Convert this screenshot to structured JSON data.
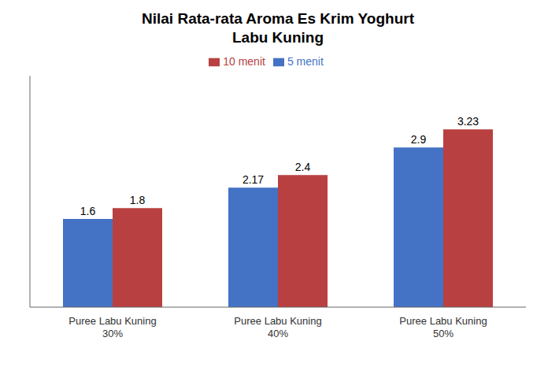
{
  "chart_data": {
    "type": "bar",
    "title": "Nilai Rata-rata Aroma Es Krim Yoghurt\nLabu Kuning",
    "categories": [
      "Puree Labu Kuning\n30%",
      "Puree Labu Kuning\n40%",
      "Puree Labu Kuning\n50%"
    ],
    "series": [
      {
        "name": "5 menit",
        "color": "#4472C4",
        "values": [
          1.6,
          2.17,
          2.9
        ]
      },
      {
        "name": "10 menit",
        "color": "#B94040",
        "values": [
          1.8,
          2.4,
          3.23
        ]
      }
    ],
    "ylim": [
      0,
      4.2
    ],
    "data_labels": true,
    "tick_labels": "x",
    "grid": false,
    "legend": "top"
  }
}
